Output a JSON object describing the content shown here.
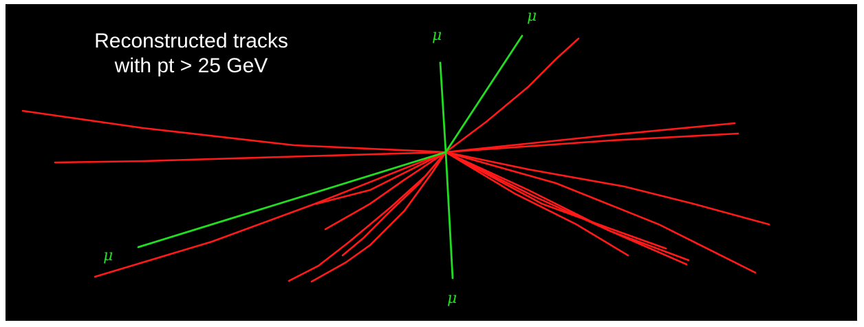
{
  "caption": {
    "line1": "Reconstructed tracks",
    "line2": "with pt > 25 GeV"
  },
  "muon_label": "μ",
  "colors": {
    "background": "#000000",
    "hadron_track": "#ff1a1a",
    "muon_track": "#22dd22",
    "caption_text": "#ffffff",
    "muon_label": "#22dd22"
  }
}
